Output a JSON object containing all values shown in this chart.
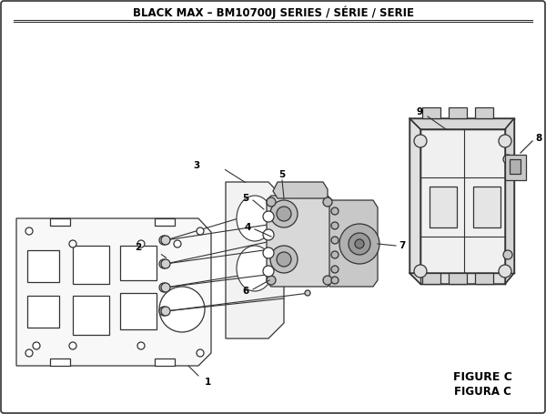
{
  "title": "BLACK MAX – BM10700J SERIES / SÉRIE / SERIE",
  "figure_label": "FIGURE C",
  "figura_label": "FIGURA C",
  "bg_color": "#ffffff",
  "line_color": "#333333",
  "title_fontsize": 8.5,
  "label_fontsize": 7.5,
  "figure_fontsize": 9
}
